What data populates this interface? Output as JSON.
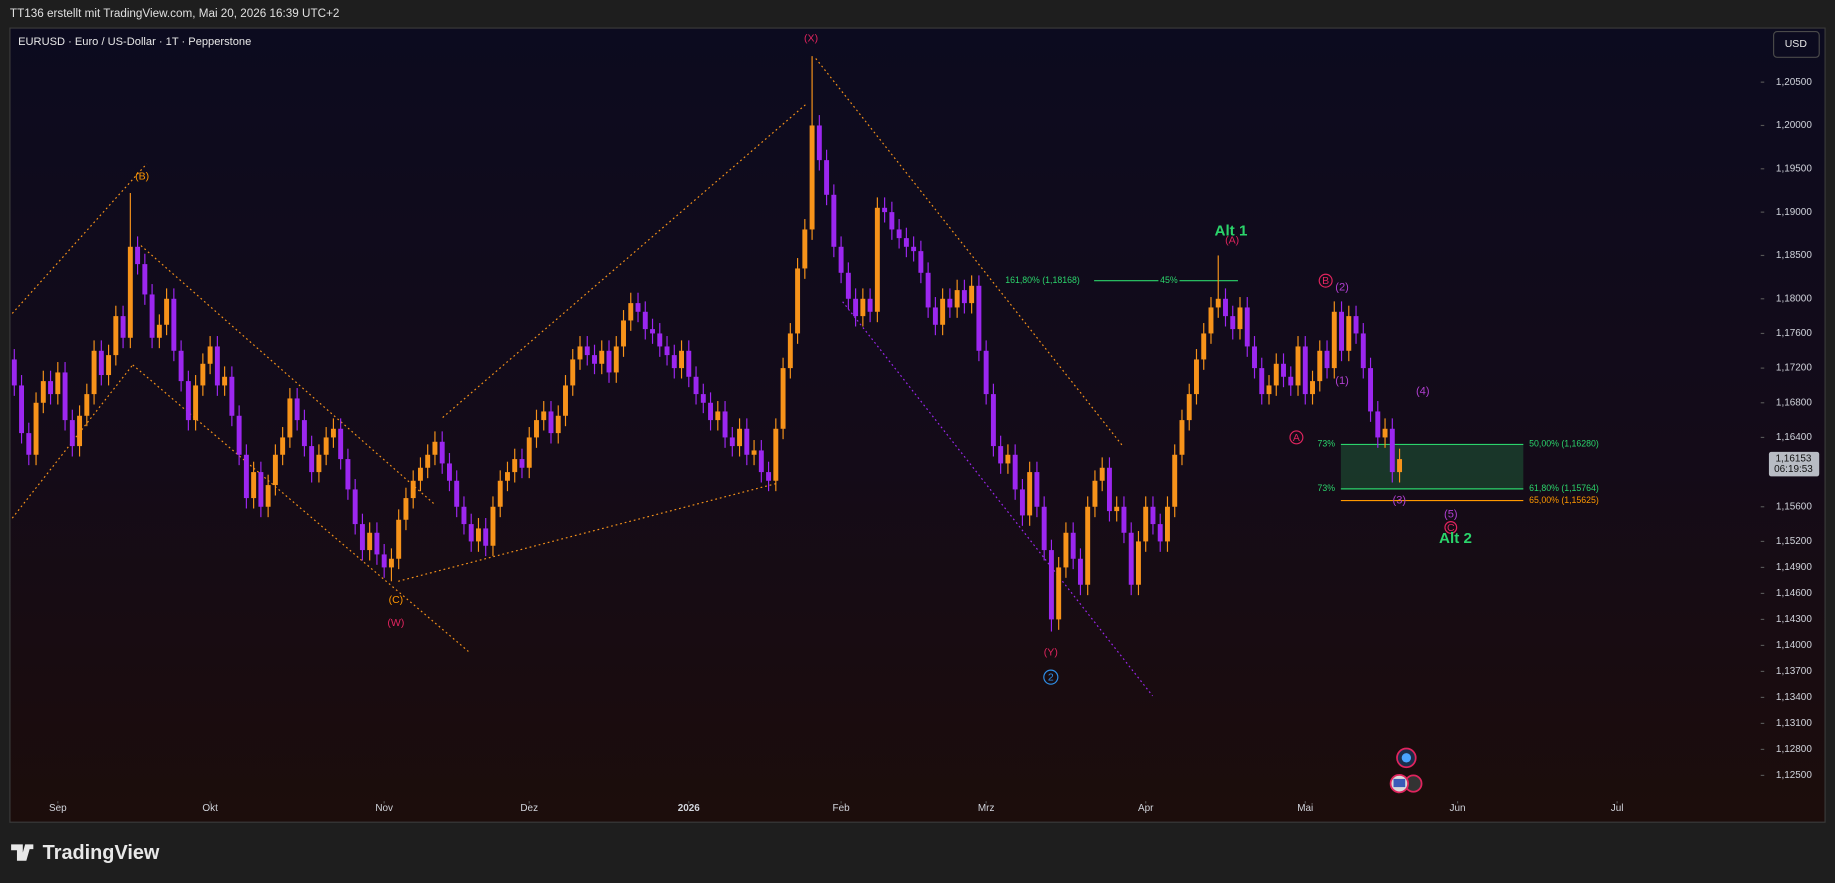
{
  "header": {
    "title": "TT136 erstellt mit TradingView.com, Mai 20, 2026 16:39 UTC+2"
  },
  "chart_data": {
    "type": "candlestick",
    "title": "EURUSD · Euro / US-Dollar · 1T · Pepperstone",
    "currency": "USD",
    "up_color": "#f7931a",
    "down_color": "#9c27f0",
    "grid": false,
    "xlim": [
      -0.6,
      240.8
    ],
    "xticks": [
      {
        "value": 6,
        "label": "Sep"
      },
      {
        "value": 27,
        "label": "Okt"
      },
      {
        "value": 51,
        "label": "Nov"
      },
      {
        "value": 71,
        "label": "Dez"
      },
      {
        "value": 93,
        "label": "2026"
      },
      {
        "value": 114,
        "label": "Feb"
      },
      {
        "value": 134,
        "label": "Mrz"
      },
      {
        "value": 156,
        "label": "Apr"
      },
      {
        "value": 178,
        "label": "Mai"
      },
      {
        "value": 199,
        "label": "Jun"
      },
      {
        "value": 221,
        "label": "Jul"
      }
    ],
    "ylim": [
      1.1223,
      1.2107
    ],
    "yticks": [
      {
        "value": 1.205,
        "label": "1,20500"
      },
      {
        "value": 1.2,
        "label": "1,20000"
      },
      {
        "value": 1.195,
        "label": "1,19500"
      },
      {
        "value": 1.19,
        "label": "1,19000"
      },
      {
        "value": 1.185,
        "label": "1,18500"
      },
      {
        "value": 1.18,
        "label": "1,18000"
      },
      {
        "value": 1.176,
        "label": "1,17600"
      },
      {
        "value": 1.172,
        "label": "1,17200"
      },
      {
        "value": 1.168,
        "label": "1,16800"
      },
      {
        "value": 1.164,
        "label": "1,16400"
      },
      {
        "value": 1.156,
        "label": "1,15600"
      },
      {
        "value": 1.152,
        "label": "1,15200"
      },
      {
        "value": 1.149,
        "label": "1,14900"
      },
      {
        "value": 1.146,
        "label": "1,14600"
      },
      {
        "value": 1.143,
        "label": "1,14300"
      },
      {
        "value": 1.14,
        "label": "1,14000"
      },
      {
        "value": 1.137,
        "label": "1,13700"
      },
      {
        "value": 1.134,
        "label": "1,13400"
      },
      {
        "value": 1.131,
        "label": "1,13100"
      },
      {
        "value": 1.128,
        "label": "1,12800"
      },
      {
        "value": 1.125,
        "label": "1,12500"
      }
    ],
    "last_price": {
      "value": 1.16153,
      "label": "1,16153"
    },
    "countdown": "06:19:53",
    "annotations": [
      "(X)",
      "(B)",
      "(C)",
      "(W)",
      "(Y)",
      "2",
      "Alt 1",
      "(A)",
      "B",
      "(2)",
      "(1)",
      "(4)",
      "A",
      "(3)",
      "(5)",
      "C",
      "Alt 2",
      "161,80% (1,18168)",
      "45%",
      "73%",
      "73%",
      "50,00% (1,16280)",
      "61,80% (1,15764)",
      "65,00% (1,15625)"
    ],
    "values": [
      [
        1.173,
        1.1742,
        1.1688,
        1.17
      ],
      [
        1.17,
        1.1712,
        1.1633,
        1.1645
      ],
      [
        1.1645,
        1.1657,
        1.1608,
        1.162
      ],
      [
        1.162,
        1.1692,
        1.1608,
        1.168
      ],
      [
        1.168,
        1.1717,
        1.1668,
        1.1705
      ],
      [
        1.1705,
        1.1717,
        1.1678,
        1.169
      ],
      [
        1.169,
        1.1727,
        1.1678,
        1.1715
      ],
      [
        1.1715,
        1.1727,
        1.1648,
        1.166
      ],
      [
        1.166,
        1.1672,
        1.1618,
        1.163
      ],
      [
        1.163,
        1.1677,
        1.1618,
        1.1665
      ],
      [
        1.1665,
        1.1702,
        1.1653,
        1.169
      ],
      [
        1.169,
        1.1752,
        1.1678,
        1.174
      ],
      [
        1.174,
        1.1752,
        1.17,
        1.1712
      ],
      [
        1.1712,
        1.1747,
        1.17,
        1.1735
      ],
      [
        1.1735,
        1.1792,
        1.1723,
        1.178
      ],
      [
        1.178,
        1.1792,
        1.1743,
        1.1755
      ],
      [
        1.1755,
        1.1922,
        1.1743,
        1.186
      ],
      [
        1.186,
        1.1872,
        1.1828,
        1.184
      ],
      [
        1.184,
        1.1852,
        1.1793,
        1.1805
      ],
      [
        1.1805,
        1.1817,
        1.1743,
        1.1755
      ],
      [
        1.1755,
        1.1782,
        1.1743,
        1.177
      ],
      [
        1.177,
        1.1812,
        1.1758,
        1.18
      ],
      [
        1.18,
        1.1812,
        1.1728,
        1.174
      ],
      [
        1.174,
        1.1752,
        1.1693,
        1.1705
      ],
      [
        1.1705,
        1.1717,
        1.1648,
        1.166
      ],
      [
        1.166,
        1.1712,
        1.1648,
        1.17
      ],
      [
        1.17,
        1.1737,
        1.1688,
        1.1725
      ],
      [
        1.1725,
        1.1757,
        1.1713,
        1.1745
      ],
      [
        1.1745,
        1.1757,
        1.1688,
        1.17
      ],
      [
        1.17,
        1.1722,
        1.1688,
        1.171
      ],
      [
        1.171,
        1.1722,
        1.1653,
        1.1665
      ],
      [
        1.1665,
        1.1677,
        1.1608,
        1.162
      ],
      [
        1.162,
        1.1632,
        1.1558,
        1.157
      ],
      [
        1.157,
        1.1612,
        1.1558,
        1.16
      ],
      [
        1.16,
        1.1612,
        1.1548,
        1.156
      ],
      [
        1.156,
        1.1597,
        1.1548,
        1.1585
      ],
      [
        1.1585,
        1.1632,
        1.1573,
        1.162
      ],
      [
        1.162,
        1.1652,
        1.1608,
        1.164
      ],
      [
        1.164,
        1.1697,
        1.1628,
        1.1685
      ],
      [
        1.1685,
        1.1697,
        1.1648,
        1.166
      ],
      [
        1.166,
        1.1672,
        1.1618,
        1.163
      ],
      [
        1.163,
        1.1642,
        1.1588,
        1.16
      ],
      [
        1.16,
        1.1632,
        1.1588,
        1.162
      ],
      [
        1.162,
        1.1652,
        1.1608,
        1.164
      ],
      [
        1.164,
        1.1662,
        1.1628,
        1.165
      ],
      [
        1.165,
        1.1662,
        1.1603,
        1.1615
      ],
      [
        1.1615,
        1.1627,
        1.1568,
        1.158
      ],
      [
        1.158,
        1.1592,
        1.1528,
        1.154
      ],
      [
        1.154,
        1.1552,
        1.1498,
        1.151
      ],
      [
        1.151,
        1.1542,
        1.1498,
        1.153
      ],
      [
        1.153,
        1.1542,
        1.1493,
        1.1505
      ],
      [
        1.1505,
        1.1517,
        1.1478,
        1.149
      ],
      [
        1.149,
        1.1512,
        1.1474,
        1.15
      ],
      [
        1.15,
        1.1557,
        1.1488,
        1.1545
      ],
      [
        1.1545,
        1.1582,
        1.1533,
        1.157
      ],
      [
        1.157,
        1.1602,
        1.1558,
        1.159
      ],
      [
        1.159,
        1.1617,
        1.1578,
        1.1605
      ],
      [
        1.1605,
        1.1632,
        1.1593,
        1.162
      ],
      [
        1.162,
        1.1647,
        1.1608,
        1.1635
      ],
      [
        1.1635,
        1.1647,
        1.1598,
        1.161
      ],
      [
        1.161,
        1.1622,
        1.1578,
        1.159
      ],
      [
        1.159,
        1.1602,
        1.1548,
        1.156
      ],
      [
        1.156,
        1.1572,
        1.1528,
        1.154
      ],
      [
        1.154,
        1.1552,
        1.1508,
        1.152
      ],
      [
        1.152,
        1.1547,
        1.1508,
        1.1535
      ],
      [
        1.1535,
        1.1547,
        1.1503,
        1.1515
      ],
      [
        1.1515,
        1.1572,
        1.1503,
        1.156
      ],
      [
        1.156,
        1.1602,
        1.1548,
        1.159
      ],
      [
        1.159,
        1.1612,
        1.1578,
        1.16
      ],
      [
        1.16,
        1.1627,
        1.1588,
        1.1615
      ],
      [
        1.1615,
        1.1627,
        1.1593,
        1.1605
      ],
      [
        1.1605,
        1.1652,
        1.1593,
        1.164
      ],
      [
        1.164,
        1.1672,
        1.1628,
        1.166
      ],
      [
        1.166,
        1.1682,
        1.1648,
        1.167
      ],
      [
        1.167,
        1.1682,
        1.1633,
        1.1645
      ],
      [
        1.1645,
        1.1677,
        1.1633,
        1.1665
      ],
      [
        1.1665,
        1.1712,
        1.1653,
        1.17
      ],
      [
        1.17,
        1.1742,
        1.1688,
        1.173
      ],
      [
        1.173,
        1.1757,
        1.1718,
        1.1745
      ],
      [
        1.1745,
        1.1757,
        1.1723,
        1.1735
      ],
      [
        1.1735,
        1.1747,
        1.1713,
        1.1725
      ],
      [
        1.1725,
        1.1752,
        1.1713,
        1.174
      ],
      [
        1.174,
        1.1752,
        1.1703,
        1.1715
      ],
      [
        1.1715,
        1.1757,
        1.1703,
        1.1745
      ],
      [
        1.1745,
        1.1787,
        1.1733,
        1.1775
      ],
      [
        1.1775,
        1.1807,
        1.1763,
        1.1795
      ],
      [
        1.1795,
        1.1807,
        1.1773,
        1.1785
      ],
      [
        1.1785,
        1.1797,
        1.1753,
        1.1765
      ],
      [
        1.1765,
        1.1777,
        1.1748,
        1.176
      ],
      [
        1.176,
        1.1772,
        1.1733,
        1.1745
      ],
      [
        1.1745,
        1.1757,
        1.1723,
        1.1735
      ],
      [
        1.1735,
        1.1747,
        1.1708,
        1.172
      ],
      [
        1.172,
        1.1752,
        1.1708,
        1.174
      ],
      [
        1.174,
        1.1752,
        1.1698,
        1.171
      ],
      [
        1.171,
        1.1722,
        1.1678,
        1.169
      ],
      [
        1.169,
        1.1702,
        1.1668,
        1.168
      ],
      [
        1.168,
        1.1692,
        1.1648,
        1.166
      ],
      [
        1.166,
        1.1682,
        1.1648,
        1.167
      ],
      [
        1.167,
        1.1682,
        1.1628,
        1.164
      ],
      [
        1.164,
        1.1652,
        1.1618,
        1.163
      ],
      [
        1.163,
        1.1662,
        1.1618,
        1.165
      ],
      [
        1.165,
        1.1662,
        1.1608,
        1.162
      ],
      [
        1.162,
        1.1637,
        1.1608,
        1.1625
      ],
      [
        1.1625,
        1.1637,
        1.1588,
        1.16
      ],
      [
        1.16,
        1.1612,
        1.1578,
        1.159
      ],
      [
        1.159,
        1.1662,
        1.1578,
        1.165
      ],
      [
        1.165,
        1.1732,
        1.1638,
        1.172
      ],
      [
        1.172,
        1.1772,
        1.1708,
        1.176
      ],
      [
        1.176,
        1.1847,
        1.1748,
        1.1835
      ],
      [
        1.1835,
        1.1892,
        1.1823,
        1.188
      ],
      [
        1.188,
        1.208,
        1.1868,
        1.2
      ],
      [
        1.2,
        1.2012,
        1.1948,
        1.196
      ],
      [
        1.196,
        1.1972,
        1.1908,
        1.192
      ],
      [
        1.192,
        1.1932,
        1.1848,
        1.186
      ],
      [
        1.186,
        1.1872,
        1.1818,
        1.183
      ],
      [
        1.183,
        1.1842,
        1.1788,
        1.18
      ],
      [
        1.18,
        1.1812,
        1.1768,
        1.178
      ],
      [
        1.178,
        1.1812,
        1.1768,
        1.18
      ],
      [
        1.18,
        1.1812,
        1.1773,
        1.1785
      ],
      [
        1.1785,
        1.1917,
        1.1773,
        1.1905
      ],
      [
        1.1905,
        1.1917,
        1.1888,
        1.19
      ],
      [
        1.19,
        1.1912,
        1.1868,
        1.188
      ],
      [
        1.188,
        1.1892,
        1.1858,
        1.187
      ],
      [
        1.187,
        1.1882,
        1.1848,
        1.186
      ],
      [
        1.186,
        1.1872,
        1.1843,
        1.1855
      ],
      [
        1.1855,
        1.1867,
        1.1818,
        1.183
      ],
      [
        1.183,
        1.1842,
        1.1778,
        1.179
      ],
      [
        1.179,
        1.1802,
        1.1758,
        1.177
      ],
      [
        1.177,
        1.1812,
        1.1758,
        1.18
      ],
      [
        1.18,
        1.1812,
        1.1778,
        1.179
      ],
      [
        1.179,
        1.1822,
        1.1778,
        1.181
      ],
      [
        1.181,
        1.1822,
        1.1783,
        1.1795
      ],
      [
        1.1795,
        1.1827,
        1.1783,
        1.1815
      ],
      [
        1.1815,
        1.1827,
        1.1728,
        1.174
      ],
      [
        1.174,
        1.1752,
        1.1678,
        1.169
      ],
      [
        1.169,
        1.1702,
        1.1618,
        1.163
      ],
      [
        1.163,
        1.1642,
        1.1598,
        1.161
      ],
      [
        1.161,
        1.1632,
        1.1598,
        1.162
      ],
      [
        1.162,
        1.1632,
        1.1568,
        1.158
      ],
      [
        1.158,
        1.1592,
        1.1538,
        1.155
      ],
      [
        1.155,
        1.1612,
        1.1538,
        1.16
      ],
      [
        1.16,
        1.1612,
        1.1548,
        1.156
      ],
      [
        1.156,
        1.1572,
        1.1498,
        1.151
      ],
      [
        1.151,
        1.1522,
        1.1416,
        1.143
      ],
      [
        1.143,
        1.1502,
        1.1418,
        1.149
      ],
      [
        1.149,
        1.1542,
        1.1478,
        1.153
      ],
      [
        1.153,
        1.1542,
        1.1488,
        1.15
      ],
      [
        1.15,
        1.1512,
        1.1458,
        1.147
      ],
      [
        1.147,
        1.1572,
        1.1458,
        1.156
      ],
      [
        1.156,
        1.1602,
        1.1548,
        1.159
      ],
      [
        1.159,
        1.1617,
        1.1578,
        1.1605
      ],
      [
        1.1605,
        1.1617,
        1.1543,
        1.1555
      ],
      [
        1.1555,
        1.1572,
        1.1543,
        1.156
      ],
      [
        1.156,
        1.1572,
        1.1518,
        1.153
      ],
      [
        1.153,
        1.1542,
        1.1458,
        1.147
      ],
      [
        1.147,
        1.1532,
        1.1458,
        1.152
      ],
      [
        1.152,
        1.1572,
        1.1508,
        1.156
      ],
      [
        1.156,
        1.1572,
        1.1528,
        1.154
      ],
      [
        1.154,
        1.1552,
        1.1508,
        1.152
      ],
      [
        1.152,
        1.1572,
        1.1508,
        1.156
      ],
      [
        1.156,
        1.1632,
        1.1548,
        1.162
      ],
      [
        1.162,
        1.1672,
        1.1608,
        1.166
      ],
      [
        1.166,
        1.1702,
        1.1648,
        1.169
      ],
      [
        1.169,
        1.1742,
        1.1678,
        1.173
      ],
      [
        1.173,
        1.1772,
        1.1718,
        1.176
      ],
      [
        1.176,
        1.1802,
        1.1748,
        1.179
      ],
      [
        1.179,
        1.185,
        1.1778,
        1.18
      ],
      [
        1.18,
        1.1812,
        1.1768,
        1.178
      ],
      [
        1.178,
        1.1792,
        1.1753,
        1.1765
      ],
      [
        1.1765,
        1.1802,
        1.1753,
        1.179
      ],
      [
        1.179,
        1.1802,
        1.1733,
        1.1745
      ],
      [
        1.1745,
        1.1757,
        1.1708,
        1.172
      ],
      [
        1.172,
        1.1732,
        1.1678,
        1.169
      ],
      [
        1.169,
        1.1712,
        1.1678,
        1.17
      ],
      [
        1.17,
        1.1737,
        1.1688,
        1.1725
      ],
      [
        1.1725,
        1.1737,
        1.1698,
        1.171
      ],
      [
        1.171,
        1.1722,
        1.1688,
        1.17
      ],
      [
        1.17,
        1.1757,
        1.1688,
        1.1745
      ],
      [
        1.1745,
        1.1757,
        1.1678,
        1.169
      ],
      [
        1.169,
        1.1717,
        1.1678,
        1.1705
      ],
      [
        1.1705,
        1.1752,
        1.1693,
        1.174
      ],
      [
        1.174,
        1.1752,
        1.1708,
        1.172
      ],
      [
        1.172,
        1.1797,
        1.1708,
        1.1785
      ],
      [
        1.1785,
        1.1797,
        1.1728,
        1.174
      ],
      [
        1.174,
        1.1792,
        1.1728,
        1.178
      ],
      [
        1.178,
        1.1792,
        1.1748,
        1.176
      ],
      [
        1.176,
        1.1772,
        1.1708,
        1.172
      ],
      [
        1.172,
        1.1732,
        1.1658,
        1.167
      ],
      [
        1.167,
        1.1682,
        1.1628,
        1.164
      ],
      [
        1.164,
        1.1662,
        1.1628,
        1.165
      ],
      [
        1.165,
        1.1662,
        1.1588,
        1.16
      ],
      [
        1.16,
        1.1627,
        1.1588,
        1.1615
      ]
    ]
  },
  "footer": {
    "brand": "TradingView"
  }
}
